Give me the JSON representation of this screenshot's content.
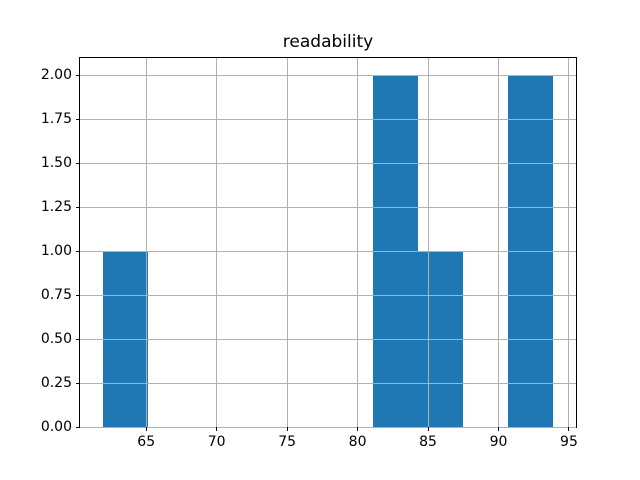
{
  "figure": {
    "background": "#ffffff"
  },
  "chart_data": {
    "type": "bar",
    "kind": "histogram",
    "title": "readability",
    "xlabel": "",
    "ylabel": "",
    "xlim": [
      60.3,
      95.5
    ],
    "ylim": [
      0,
      2.1
    ],
    "x_ticks": [
      65,
      70,
      75,
      80,
      85,
      90,
      95
    ],
    "x_tick_labels": [
      "65",
      "70",
      "75",
      "80",
      "85",
      "90",
      "95"
    ],
    "y_ticks": [
      0,
      0.25,
      0.5,
      0.75,
      1.0,
      1.25,
      1.5,
      1.75,
      2.0
    ],
    "y_tick_labels": [
      "0.00",
      "0.25",
      "0.50",
      "0.75",
      "1.00",
      "1.25",
      "1.50",
      "1.75",
      "2.00"
    ],
    "bin_edges": [
      61.9,
      65.1,
      68.3,
      71.5,
      74.7,
      77.9,
      81.1,
      84.3,
      87.5,
      90.7,
      93.9
    ],
    "counts": [
      1,
      0,
      0,
      0,
      0,
      0,
      2,
      1,
      0,
      2
    ],
    "bar_color": "#1f77b4",
    "grid": true,
    "grid_on_top_of_bars": true,
    "grid_color": "#b0b0b0",
    "spine_color": "#000000",
    "tick_color": "#000000",
    "legend": null
  }
}
